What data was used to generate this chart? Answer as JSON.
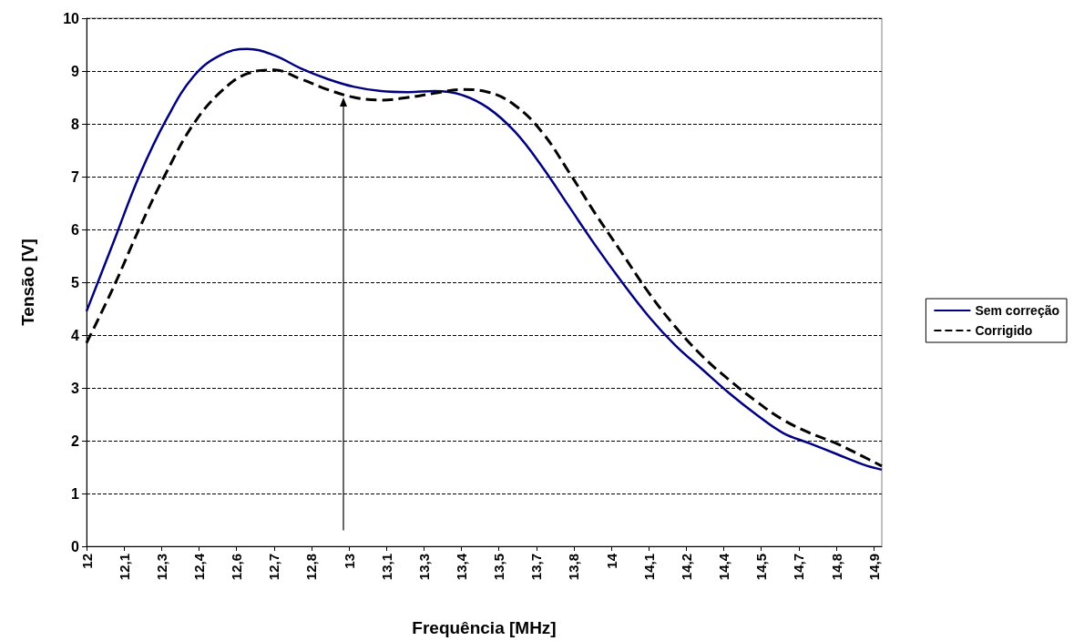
{
  "chart_data": {
    "type": "line",
    "xlabel": "Frequência [MHz]",
    "ylabel": "Tensão [V]",
    "xlim": [
      12,
      14.97
    ],
    "xticks": [
      {
        "value": 12,
        "label": "12"
      },
      {
        "value": 12.14,
        "label": "12,1"
      },
      {
        "value": 12.28,
        "label": "12,3"
      },
      {
        "value": 12.42,
        "label": "12,4"
      },
      {
        "value": 12.56,
        "label": "12,6"
      },
      {
        "value": 12.7,
        "label": "12,7"
      },
      {
        "value": 12.84,
        "label": "12,8"
      },
      {
        "value": 12.98,
        "label": "13"
      },
      {
        "value": 13.12,
        "label": "13,1"
      },
      {
        "value": 13.26,
        "label": "13,3"
      },
      {
        "value": 13.4,
        "label": "13,4"
      },
      {
        "value": 13.54,
        "label": "13,5"
      },
      {
        "value": 13.68,
        "label": "13,7"
      },
      {
        "value": 13.82,
        "label": "13,8"
      },
      {
        "value": 13.96,
        "label": "14"
      },
      {
        "value": 14.1,
        "label": "14,1"
      },
      {
        "value": 14.24,
        "label": "14,2"
      },
      {
        "value": 14.38,
        "label": "14,4"
      },
      {
        "value": 14.52,
        "label": "14,5"
      },
      {
        "value": 14.66,
        "label": "14,7"
      },
      {
        "value": 14.8,
        "label": "14,8"
      },
      {
        "value": 14.94,
        "label": "14,9"
      }
    ],
    "ref_lines": [
      {
        "axis": "x",
        "value": 12.96,
        "color": "#000000"
      }
    ],
    "ylim": [
      0,
      10
    ],
    "yticks": [
      0,
      1,
      2,
      3,
      4,
      5,
      6,
      7,
      8,
      9,
      10
    ],
    "grid": "y",
    "legend": "right",
    "marker": "none",
    "x": [
      12.0,
      12.1,
      12.2,
      12.3,
      12.4,
      12.5,
      12.6,
      12.7,
      12.8,
      12.9,
      13.0,
      13.1,
      13.2,
      13.3,
      13.4,
      13.5,
      13.6,
      13.7,
      13.8,
      13.9,
      14.0,
      14.1,
      14.2,
      14.3,
      14.4,
      14.5,
      14.6,
      14.7,
      14.8,
      14.9,
      14.97
    ],
    "series": [
      {
        "name": "Sem correção",
        "color": "#000080",
        "line_style": "solid",
        "values": [
          4.45,
          5.75,
          7.05,
          8.1,
          8.9,
          9.3,
          9.42,
          9.3,
          9.05,
          8.85,
          8.7,
          8.62,
          8.6,
          8.62,
          8.55,
          8.3,
          7.85,
          7.2,
          6.45,
          5.7,
          5.0,
          4.35,
          3.8,
          3.35,
          2.9,
          2.5,
          2.15,
          1.95,
          1.75,
          1.55,
          1.45
        ]
      },
      {
        "name": "Corrigido",
        "color": "#000000",
        "line_style": "dashed",
        "values": [
          3.85,
          4.9,
          6.05,
          7.1,
          8.0,
          8.6,
          8.95,
          9.02,
          8.85,
          8.65,
          8.5,
          8.45,
          8.5,
          8.58,
          8.65,
          8.6,
          8.35,
          7.85,
          7.1,
          6.3,
          5.55,
          4.8,
          4.15,
          3.6,
          3.15,
          2.75,
          2.4,
          2.15,
          1.95,
          1.7,
          1.52
        ]
      }
    ]
  }
}
